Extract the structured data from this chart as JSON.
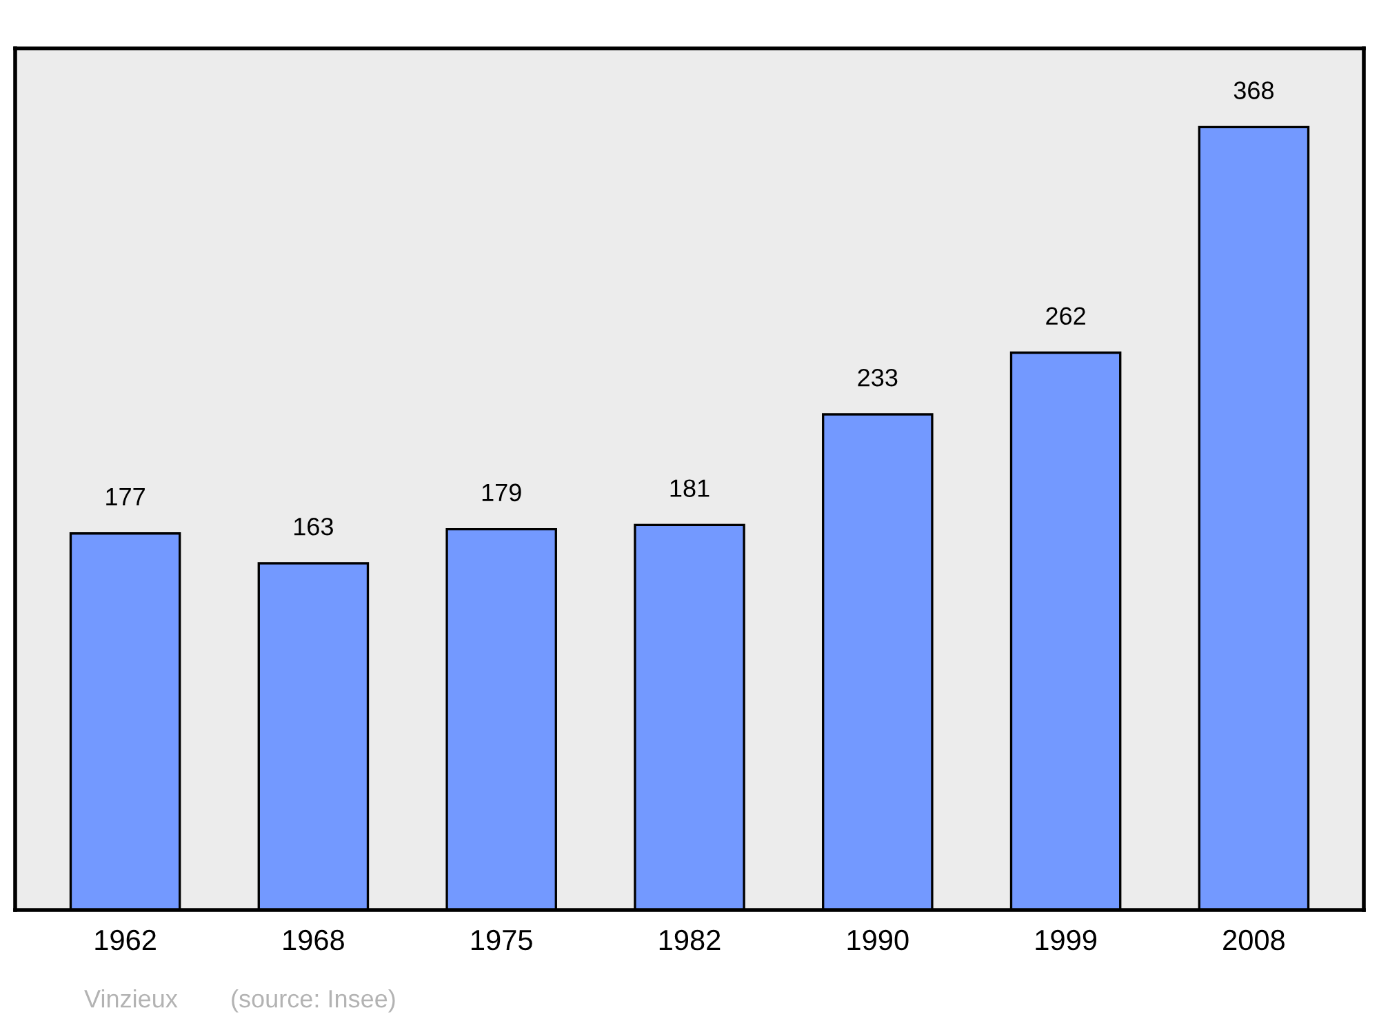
{
  "chart_data": {
    "type": "bar",
    "categories": [
      "1962",
      "1968",
      "1975",
      "1982",
      "1990",
      "1999",
      "2008"
    ],
    "values": [
      177,
      163,
      179,
      181,
      233,
      262,
      368
    ],
    "color": "#7399ff",
    "ylim": [
      0,
      405
    ],
    "tick_labels": "x",
    "data_labels": true,
    "grid": false,
    "legend": false,
    "annotations": [
      "Vinzieux",
      "(source: Insee)"
    ]
  }
}
